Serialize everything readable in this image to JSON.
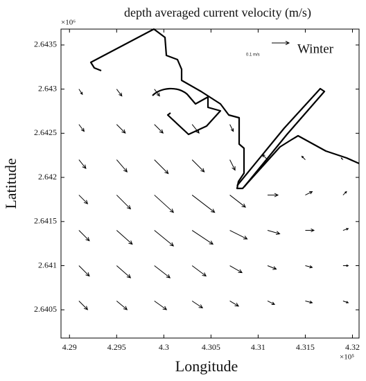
{
  "chart_data": {
    "type": "quiver",
    "title": "depth averaged  current velocity (m/s)",
    "annotation": "Winter",
    "x_label": "Longitude",
    "y_label": "Latitude",
    "x_exponent_label": "×10⁵",
    "y_exponent_label": "×10⁶",
    "xlim": [
      4.2891,
      4.3207
    ],
    "ylim": [
      2.64018,
      2.64368
    ],
    "xticks": [
      4.29,
      4.295,
      4.3,
      4.305,
      4.31,
      4.315,
      4.32
    ],
    "yticks": [
      2.6405,
      2.641,
      2.6415,
      2.642,
      2.6425,
      2.643,
      2.6435
    ],
    "color": "#000000",
    "quiver_key": {
      "value": 0.1,
      "label": "0.1 m/s"
    },
    "x": [
      4.291,
      4.295,
      4.299,
      4.303,
      4.307,
      4.311,
      4.315,
      4.319,
      4.291,
      4.295,
      4.299,
      4.303,
      4.307,
      4.311,
      4.315,
      4.319,
      4.291,
      4.295,
      4.299,
      4.303,
      4.307,
      4.311,
      4.315,
      4.319,
      4.291,
      4.295,
      4.299,
      4.303,
      4.307,
      4.311,
      4.315,
      4.319,
      4.291,
      4.295,
      4.299,
      4.303,
      4.307,
      4.311,
      4.315,
      4.319,
      4.291,
      4.295,
      4.299,
      4.303,
      4.307,
      4.291,
      4.295,
      4.299
    ],
    "y": [
      2.6406,
      2.6406,
      2.6406,
      2.6406,
      2.6406,
      2.6406,
      2.6406,
      2.6406,
      2.641,
      2.641,
      2.641,
      2.641,
      2.641,
      2.641,
      2.641,
      2.641,
      2.6414,
      2.6414,
      2.6414,
      2.6414,
      2.6414,
      2.6414,
      2.6414,
      2.6414,
      2.6418,
      2.6418,
      2.6418,
      2.6418,
      2.6418,
      2.6418,
      2.6418,
      2.6418,
      2.6422,
      2.6422,
      2.6422,
      2.6422,
      2.6422,
      2.6422,
      2.6422,
      2.6422,
      2.6426,
      2.6426,
      2.6426,
      2.6426,
      2.6426,
      2.643,
      2.643,
      2.643
    ],
    "u": [
      0.05,
      0.06,
      0.07,
      0.06,
      0.05,
      0.04,
      0.04,
      0.03,
      0.06,
      0.08,
      0.09,
      0.08,
      0.07,
      0.05,
      0.04,
      0.03,
      0.06,
      0.09,
      0.11,
      0.12,
      0.1,
      0.07,
      0.05,
      0.03,
      0.05,
      0.08,
      0.11,
      0.13,
      0.09,
      0.06,
      0.04,
      0.02,
      0.04,
      0.06,
      0.08,
      0.07,
      0.03,
      -0.03,
      -0.02,
      -0.01,
      0.03,
      0.05,
      0.05,
      0.04,
      0.02,
      0.02,
      0.03,
      0.03
    ],
    "v": [
      -0.05,
      -0.05,
      -0.05,
      -0.04,
      -0.03,
      -0.02,
      -0.01,
      -0.01,
      -0.06,
      -0.07,
      -0.07,
      -0.06,
      -0.04,
      -0.02,
      -0.01,
      0,
      -0.06,
      -0.08,
      -0.09,
      -0.08,
      -0.05,
      -0.02,
      0,
      0.01,
      -0.05,
      -0.08,
      -0.1,
      -0.1,
      -0.07,
      0,
      0.02,
      0.02,
      -0.05,
      -0.07,
      -0.08,
      -0.07,
      -0.06,
      0.03,
      0.02,
      0.01,
      -0.04,
      -0.05,
      -0.05,
      -0.05,
      -0.04,
      -0.03,
      -0.04,
      -0.04
    ]
  }
}
